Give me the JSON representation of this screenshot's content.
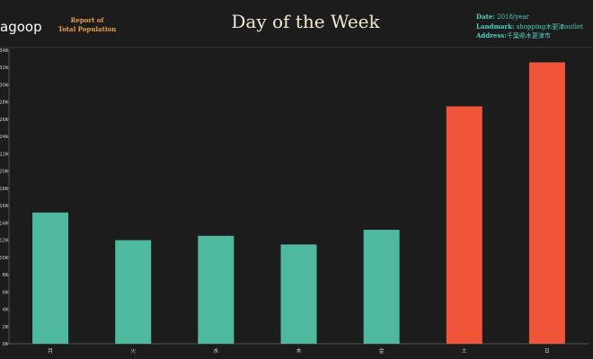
{
  "header": {
    "logo_text": "agoop",
    "report_line1": "Report of",
    "report_line2": "Total Population",
    "info": {
      "date_label": "Date:",
      "date_value": " 2018/year",
      "landmark_label": "Landmark:",
      "landmark_value": " shopping木更津outlet",
      "address_label": "Address:",
      "address_value": "千葉県木更津市"
    }
  },
  "colors": {
    "weekday": "#4fb9a0",
    "weekend": "#f0553a",
    "background": "#1c1c1c",
    "axis_text": "#cccccc"
  },
  "chart_data": {
    "type": "bar",
    "title": "Day of the Week",
    "xlabel": "",
    "ylabel": "",
    "categories": [
      "月",
      "火",
      "水",
      "木",
      "金",
      "土",
      "日"
    ],
    "values": [
      15200,
      12000,
      12500,
      11500,
      13200,
      27500,
      32600
    ],
    "highlight": [
      false,
      false,
      false,
      false,
      false,
      true,
      true
    ],
    "ylim": [
      0,
      34000
    ],
    "yticks": [
      0,
      2000,
      4000,
      6000,
      8000,
      10000,
      12000,
      14000,
      16000,
      18000,
      20000,
      22000,
      24000,
      26000,
      28000,
      30000,
      32000,
      34000
    ],
    "ytick_labels": [
      "0K",
      "2K",
      "4K",
      "6K",
      "8K",
      "10K",
      "12K",
      "14K",
      "16K",
      "18K",
      "20K",
      "22K",
      "24K",
      "26K",
      "28K",
      "30K",
      "32K",
      "34K"
    ],
    "grid": false,
    "legend": "none"
  }
}
